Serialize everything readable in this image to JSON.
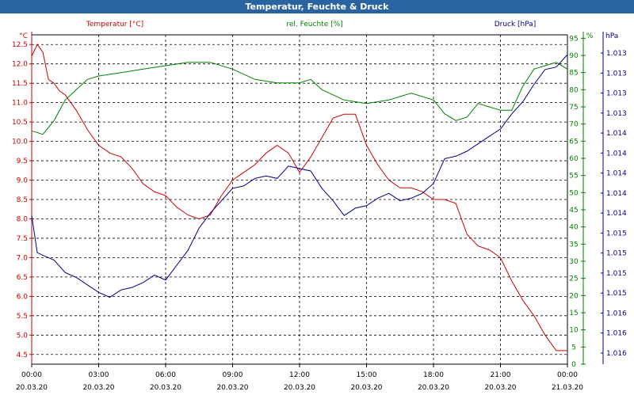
{
  "window": {
    "title": "Temperatur, Feuchte & Druck"
  },
  "chart_data": {
    "type": "line",
    "title": "Temperatur, Feuchte & Druck",
    "x_tick_labels": [
      {
        "time": "00:00",
        "date": "20.03.20"
      },
      {
        "time": "03:00",
        "date": "20.03.20"
      },
      {
        "time": "06:00",
        "date": "20.03.20"
      },
      {
        "time": "09:00",
        "date": "20.03.20"
      },
      {
        "time": "12:00",
        "date": "20.03.20"
      },
      {
        "time": "15:00",
        "date": "20.03.20"
      },
      {
        "time": "18:00",
        "date": "20.03.20"
      },
      {
        "time": "21:00",
        "date": "20.03.20"
      },
      {
        "time": "00:00",
        "date": "21.03.20"
      }
    ],
    "x_hours": [
      0,
      24
    ],
    "axes": {
      "temperature": {
        "unit_label": "°C",
        "series_label": "Temperatur [°C]",
        "ylim": [
          4.25,
          12.75
        ],
        "ticks": [
          "4.5",
          "5.0",
          "5.5",
          "6.0",
          "6.5",
          "7.0",
          "7.5",
          "8.0",
          "8.5",
          "9.0",
          "9.5",
          "10.0",
          "10.5",
          "11.0",
          "11.5",
          "12.0",
          "12.5"
        ],
        "color": "#cc0000"
      },
      "humidity": {
        "unit_label": "%",
        "series_label": "rel. Feuchte [%]",
        "ylim": [
          0,
          96
        ],
        "ticks": [
          "0",
          "5",
          "10",
          "15",
          "20",
          "25",
          "30",
          "35",
          "40",
          "45",
          "50",
          "55",
          "60",
          "65",
          "70",
          "75",
          "80",
          "85",
          "90",
          "95"
        ],
        "color": "#008000"
      },
      "pressure": {
        "unit_label": "hPa",
        "series_label": "Druck [hPa]",
        "ticks": [
          "1.013",
          "1.013",
          "1.013",
          "1.013",
          "1.014",
          "1.014",
          "1.014",
          "1.014",
          "1.014",
          "1.015",
          "1.015",
          "1.015",
          "1.015",
          "1.016",
          "1.016",
          "1.016"
        ],
        "color": "#00008b"
      }
    },
    "grid": true,
    "series": [
      {
        "name": "Temperatur [°C]",
        "axis": "temperature",
        "color": "#cc0000",
        "x": [
          0,
          0.25,
          0.5,
          0.75,
          1,
          1.25,
          1.5,
          1.75,
          2,
          2.5,
          3,
          3.5,
          4,
          4.5,
          5,
          5.5,
          6,
          6.5,
          7,
          7.5,
          8,
          8.5,
          9,
          9.5,
          10,
          10.5,
          11,
          11.5,
          12,
          12.5,
          13,
          13.5,
          14,
          14.5,
          15,
          15.5,
          16,
          16.5,
          17,
          17.5,
          18,
          18.5,
          19,
          19.5,
          20,
          20.5,
          21,
          21.5,
          22,
          22.5,
          23,
          23.5,
          24
        ],
        "y": [
          12.2,
          12.5,
          12.3,
          11.6,
          11.5,
          11.3,
          11.2,
          11.0,
          10.8,
          10.3,
          9.9,
          9.7,
          9.6,
          9.3,
          8.9,
          8.7,
          8.6,
          8.3,
          8.1,
          8.0,
          8.1,
          8.6,
          9.0,
          9.2,
          9.4,
          9.7,
          9.9,
          9.7,
          9.2,
          9.6,
          10.1,
          10.6,
          10.7,
          10.7,
          9.9,
          9.4,
          9.0,
          8.8,
          8.8,
          8.7,
          8.5,
          8.5,
          8.4,
          7.6,
          7.3,
          7.2,
          7.0,
          6.4,
          5.9,
          5.5,
          5.0,
          4.6,
          4.6
        ]
      },
      {
        "name": "rel. Feuchte [%]",
        "axis": "humidity",
        "color": "#008000",
        "x": [
          0,
          0.5,
          1,
          1.5,
          2,
          2.5,
          3,
          4,
          5,
          6,
          7,
          8,
          9,
          10,
          11,
          12,
          12.5,
          13,
          14,
          15,
          16,
          17,
          18,
          18.5,
          19,
          19.5,
          20,
          20.5,
          21,
          21.5,
          22,
          22.5,
          23,
          23.5,
          24
        ],
        "y": [
          68,
          67,
          71,
          77,
          80,
          83,
          84,
          85,
          86,
          87,
          88,
          88,
          86,
          83,
          82,
          82,
          83,
          80,
          77,
          76,
          77,
          79,
          77,
          73,
          71,
          72,
          76,
          75,
          74,
          74,
          81,
          86,
          87,
          88,
          86
        ]
      },
      {
        "name": "Druck [hPa]",
        "axis": "pressure",
        "color": "#00008b",
        "x": [
          0,
          0.25,
          0.5,
          1,
          1.5,
          2,
          2.5,
          3,
          3.5,
          4,
          4.5,
          5,
          5.5,
          6,
          6.5,
          7,
          7.5,
          8,
          8.5,
          9,
          9.5,
          10,
          10.5,
          11,
          11.5,
          12,
          12.5,
          13,
          13.5,
          14,
          14.5,
          15,
          15.5,
          16,
          16.5,
          17,
          17.5,
          18,
          18.5,
          19,
          19.5,
          20,
          20.5,
          21,
          21.5,
          22,
          22.5,
          23,
          23.5,
          24
        ],
        "y": [
          0.6,
          0.45,
          0.44,
          0.42,
          0.37,
          0.35,
          0.32,
          0.29,
          0.27,
          0.3,
          0.31,
          0.33,
          0.36,
          0.34,
          0.4,
          0.46,
          0.55,
          0.61,
          0.66,
          0.71,
          0.72,
          0.75,
          0.76,
          0.75,
          0.8,
          0.79,
          0.78,
          0.71,
          0.66,
          0.6,
          0.63,
          0.64,
          0.67,
          0.69,
          0.66,
          0.67,
          0.69,
          0.73,
          0.83,
          0.84,
          0.86,
          0.89,
          0.92,
          0.95,
          1.01,
          1.06,
          1.13,
          1.19,
          1.2,
          1.25
        ]
      }
    ]
  }
}
